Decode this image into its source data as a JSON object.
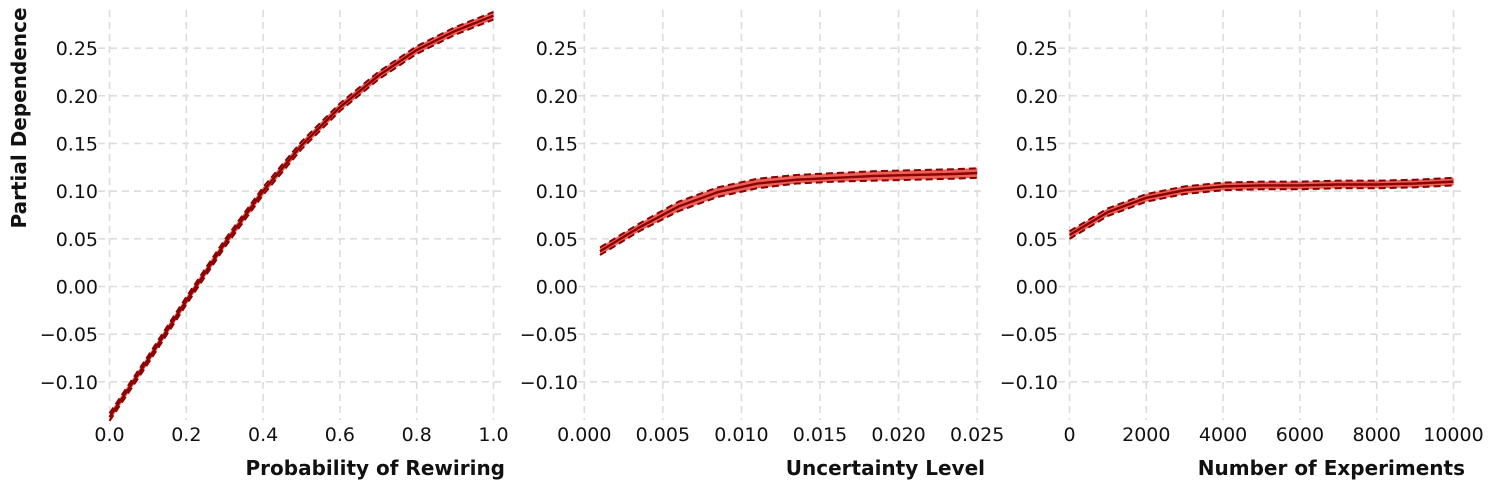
{
  "figure": {
    "shared_ylabel": "Partial Dependence",
    "colors": {
      "line": "#8b0000",
      "band": "#e8443a",
      "grid": "#dcdcdc",
      "text": "#111111"
    }
  },
  "chart_data": [
    {
      "type": "line",
      "title": "",
      "xlabel": "Probability of Rewiring",
      "ylabel": "Partial Dependence",
      "xlim": [
        -0.03,
        1.03
      ],
      "ylim": [
        -0.14,
        0.29
      ],
      "xticks": [
        0.0,
        0.2,
        0.4,
        0.6,
        0.8,
        1.0
      ],
      "xtick_labels": [
        "0.0",
        "0.2",
        "0.4",
        "0.6",
        "0.8",
        "1.0"
      ],
      "yticks": [
        -0.1,
        -0.05,
        0.0,
        0.05,
        0.1,
        0.15,
        0.2,
        0.25
      ],
      "ytick_labels": [
        "−0.10",
        "−0.05",
        "0.00",
        "0.05",
        "0.10",
        "0.15",
        "0.20",
        "0.25"
      ],
      "grid": true,
      "legend": "none",
      "series": [
        {
          "x": [
            0.0,
            0.1,
            0.2,
            0.3,
            0.4,
            0.5,
            0.6,
            0.7,
            0.8,
            0.9,
            1.0
          ],
          "mean": [
            -0.137,
            -0.077,
            -0.015,
            0.045,
            0.1,
            0.148,
            0.188,
            0.221,
            0.248,
            0.268,
            0.284
          ],
          "lower": [
            -0.141,
            -0.081,
            -0.019,
            0.041,
            0.096,
            0.144,
            0.184,
            0.217,
            0.244,
            0.264,
            0.28
          ],
          "upper": [
            -0.133,
            -0.073,
            -0.011,
            0.049,
            0.104,
            0.152,
            0.192,
            0.225,
            0.252,
            0.272,
            0.288
          ]
        }
      ]
    },
    {
      "type": "line",
      "title": "",
      "xlabel": "Uncertainty Level",
      "ylabel": "",
      "xlim": [
        -0.0004,
        0.0255
      ],
      "ylim": [
        -0.14,
        0.29
      ],
      "xticks": [
        0.0,
        0.005,
        0.01,
        0.015,
        0.02,
        0.025
      ],
      "xtick_labels": [
        "0.000",
        "0.005",
        "0.010",
        "0.015",
        "0.020",
        "0.025"
      ],
      "yticks": [
        -0.1,
        -0.05,
        0.0,
        0.05,
        0.1,
        0.15,
        0.2,
        0.25
      ],
      "ytick_labels": [
        "−0.10",
        "−0.05",
        "0.00",
        "0.05",
        "0.10",
        "0.15",
        "0.20",
        "0.25"
      ],
      "grid": true,
      "legend": "none",
      "series": [
        {
          "x": [
            0.001,
            0.0035,
            0.006,
            0.0085,
            0.011,
            0.0135,
            0.016,
            0.0185,
            0.021,
            0.0235,
            0.025
          ],
          "mean": [
            0.037,
            0.062,
            0.084,
            0.099,
            0.108,
            0.112,
            0.114,
            0.116,
            0.117,
            0.118,
            0.119
          ],
          "lower": [
            0.033,
            0.058,
            0.079,
            0.094,
            0.103,
            0.108,
            0.11,
            0.111,
            0.112,
            0.113,
            0.114
          ],
          "upper": [
            0.041,
            0.066,
            0.089,
            0.104,
            0.113,
            0.117,
            0.119,
            0.121,
            0.122,
            0.123,
            0.124
          ]
        }
      ]
    },
    {
      "type": "line",
      "title": "",
      "xlabel": "Number of Experiments",
      "ylabel": "",
      "xlim": [
        -300,
        10300
      ],
      "ylim": [
        -0.14,
        0.29
      ],
      "xticks": [
        0,
        2000,
        4000,
        6000,
        8000,
        10000
      ],
      "xtick_labels": [
        "0",
        "2000",
        "4000",
        "6000",
        "8000",
        "10000"
      ],
      "yticks": [
        -0.1,
        -0.05,
        0.0,
        0.05,
        0.1,
        0.15,
        0.2,
        0.25
      ],
      "ytick_labels": [
        "−0.10",
        "−0.05",
        "0.00",
        "0.05",
        "0.10",
        "0.15",
        "0.20",
        "0.25"
      ],
      "grid": true,
      "legend": "none",
      "series": [
        {
          "x": [
            0,
            1000,
            2000,
            3000,
            4000,
            5000,
            6000,
            7000,
            8000,
            9000,
            10000
          ],
          "mean": [
            0.054,
            0.078,
            0.093,
            0.101,
            0.105,
            0.106,
            0.106,
            0.107,
            0.107,
            0.108,
            0.11
          ],
          "lower": [
            0.05,
            0.074,
            0.089,
            0.097,
            0.101,
            0.102,
            0.102,
            0.103,
            0.103,
            0.104,
            0.106
          ],
          "upper": [
            0.058,
            0.082,
            0.097,
            0.105,
            0.109,
            0.11,
            0.11,
            0.111,
            0.111,
            0.112,
            0.114
          ]
        }
      ]
    }
  ]
}
